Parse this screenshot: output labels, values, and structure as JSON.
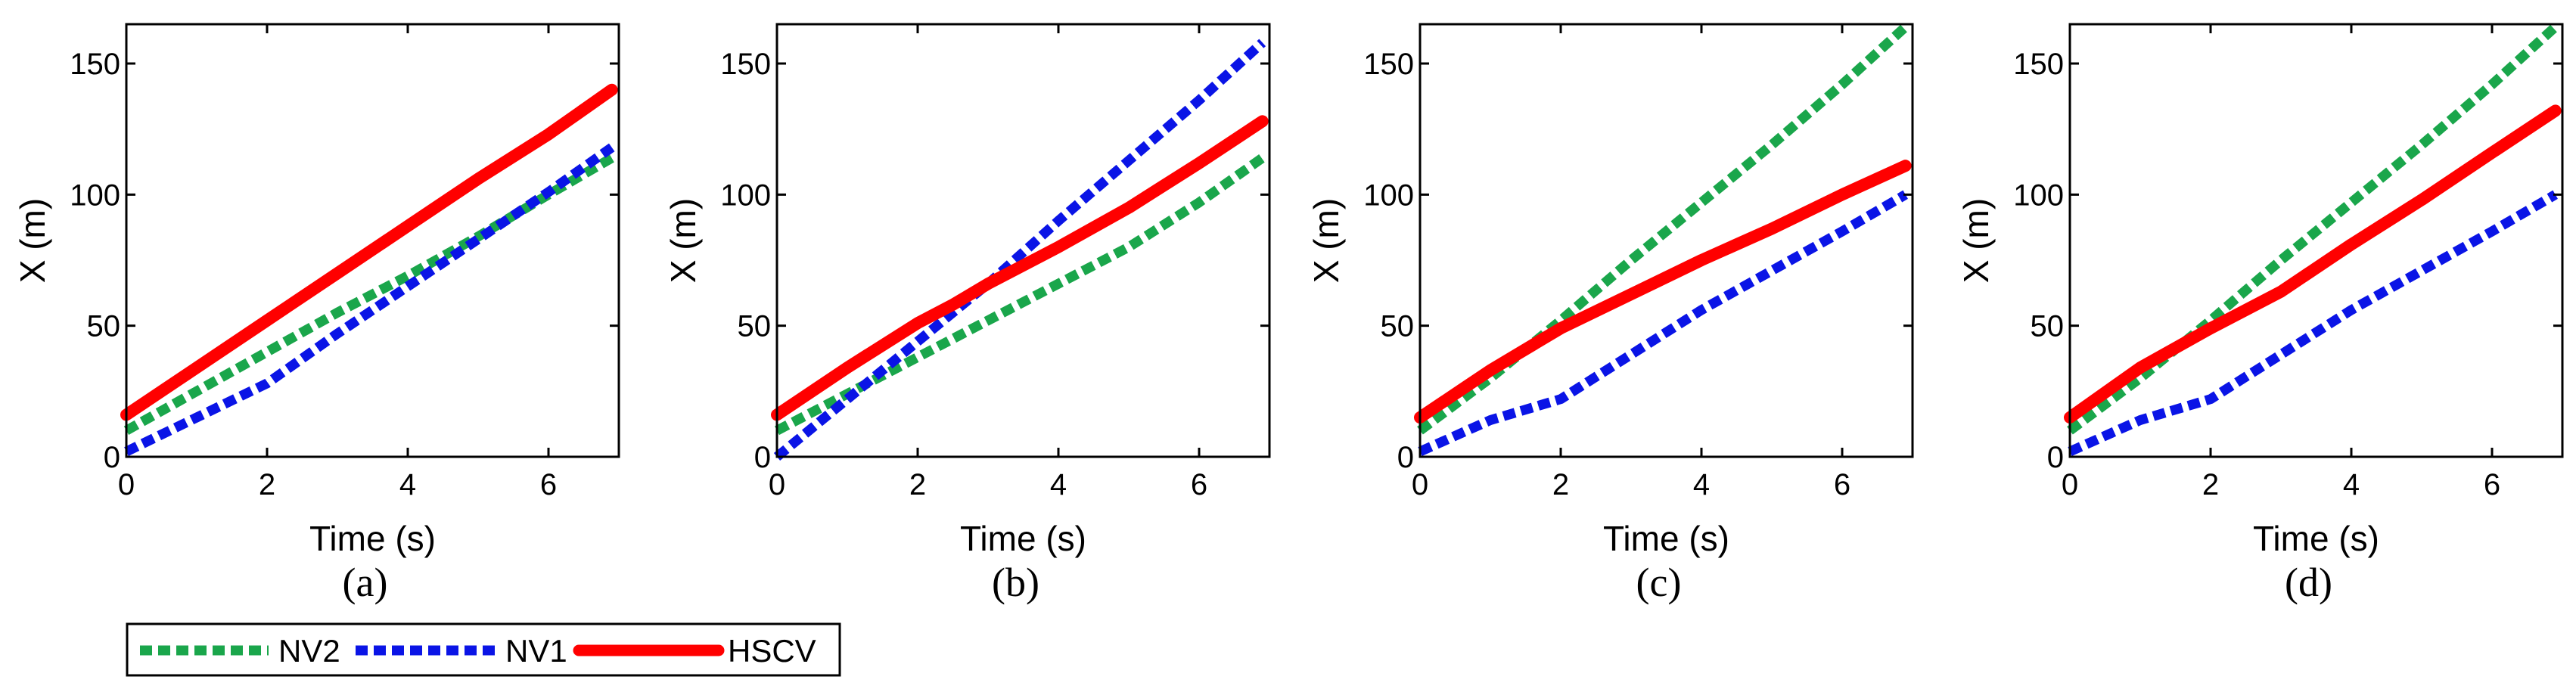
{
  "chart_data": [
    {
      "type": "line",
      "caption": "(a)",
      "xlabel": "Time (s)",
      "ylabel": "X (m)",
      "xlim": [
        0,
        7
      ],
      "ylim": [
        0,
        165
      ],
      "xticks": [
        0,
        2,
        4,
        6
      ],
      "yticks": [
        0,
        50,
        100,
        150
      ],
      "series": [
        {
          "name": "NV2",
          "x": [
            0,
            1,
            2,
            3,
            4,
            5,
            6,
            6.9
          ],
          "y": [
            10,
            25,
            40,
            55,
            69,
            84,
            100,
            114
          ]
        },
        {
          "name": "NV1",
          "x": [
            0,
            1,
            2,
            3,
            4,
            5,
            6,
            6.9
          ],
          "y": [
            2,
            15,
            28,
            47,
            65,
            83,
            101,
            118
          ]
        },
        {
          "name": "HSCV",
          "x": [
            0,
            1,
            2,
            3,
            4,
            5,
            6,
            6.9
          ],
          "y": [
            16,
            34,
            52,
            70,
            88,
            106,
            123,
            140
          ]
        }
      ]
    },
    {
      "type": "line",
      "caption": "(b)",
      "xlabel": "Time (s)",
      "ylabel": "X (m)",
      "xlim": [
        0,
        7
      ],
      "ylim": [
        0,
        165
      ],
      "xticks": [
        0,
        2,
        4,
        6
      ],
      "yticks": [
        0,
        50,
        100,
        150
      ],
      "series": [
        {
          "name": "NV2",
          "x": [
            0,
            1,
            2,
            3,
            4,
            5,
            6,
            6.9
          ],
          "y": [
            10,
            24,
            38,
            52,
            66,
            80,
            97,
            114
          ]
        },
        {
          "name": "NV1",
          "x": [
            0,
            1,
            2,
            3,
            4,
            5,
            6,
            6.9
          ],
          "y": [
            0,
            22,
            44,
            66,
            90,
            113,
            136,
            158
          ]
        },
        {
          "name": "HSCV",
          "x": [
            0,
            1,
            2,
            2.5,
            3,
            4,
            5,
            6,
            6.9
          ],
          "y": [
            16,
            34,
            51,
            58,
            66,
            80,
            95,
            112,
            128
          ]
        }
      ]
    },
    {
      "type": "line",
      "caption": "(c)",
      "xlabel": "Time (s)",
      "ylabel": "X (m)",
      "xlim": [
        0,
        7
      ],
      "ylim": [
        0,
        165
      ],
      "xticks": [
        0,
        2,
        4,
        6
      ],
      "yticks": [
        0,
        50,
        100,
        150
      ],
      "series": [
        {
          "name": "NV2",
          "x": [
            0,
            1,
            2,
            3,
            4,
            5,
            6,
            6.9
          ],
          "y": [
            10,
            30,
            52,
            75,
            97,
            119,
            142,
            164
          ]
        },
        {
          "name": "NV1",
          "x": [
            0,
            1,
            2,
            3,
            4,
            5,
            6,
            6.9
          ],
          "y": [
            2,
            14,
            22,
            39,
            56,
            71,
            86,
            100
          ]
        },
        {
          "name": "HSCV",
          "x": [
            0,
            1,
            2,
            3,
            4,
            5,
            6,
            6.9
          ],
          "y": [
            15,
            33,
            49,
            62,
            75,
            87,
            100,
            111
          ]
        }
      ]
    },
    {
      "type": "line",
      "caption": "(d)",
      "xlabel": "Time (s)",
      "ylabel": "X (m)",
      "xlim": [
        0,
        7
      ],
      "ylim": [
        0,
        165
      ],
      "xticks": [
        0,
        2,
        4,
        6
      ],
      "yticks": [
        0,
        50,
        100,
        150
      ],
      "series": [
        {
          "name": "NV2",
          "x": [
            0,
            1,
            2,
            3,
            4,
            5,
            6,
            6.9
          ],
          "y": [
            10,
            30,
            52,
            75,
            97,
            119,
            142,
            164
          ]
        },
        {
          "name": "NV1",
          "x": [
            0,
            1,
            2,
            3,
            4,
            5,
            6,
            6.9
          ],
          "y": [
            2,
            14,
            22,
            39,
            56,
            71,
            86,
            100
          ]
        },
        {
          "name": "HSCV",
          "x": [
            0,
            1,
            2,
            3,
            4,
            5,
            6,
            6.9
          ],
          "y": [
            15,
            34,
            49,
            63,
            81,
            98,
            116,
            132
          ]
        }
      ]
    }
  ],
  "legend": {
    "position": "bottom-left",
    "entries": [
      {
        "name": "NV2",
        "color": "#1aa64b",
        "style": "dotted"
      },
      {
        "name": "NV1",
        "color": "#0a14e6",
        "style": "dotted"
      },
      {
        "name": "HSCV",
        "color": "#ff0000",
        "style": "solid"
      }
    ]
  },
  "colors": {
    "NV2": "#1aa64b",
    "NV1": "#0a14e6",
    "HSCV": "#ff0000",
    "axes": "#000000"
  }
}
